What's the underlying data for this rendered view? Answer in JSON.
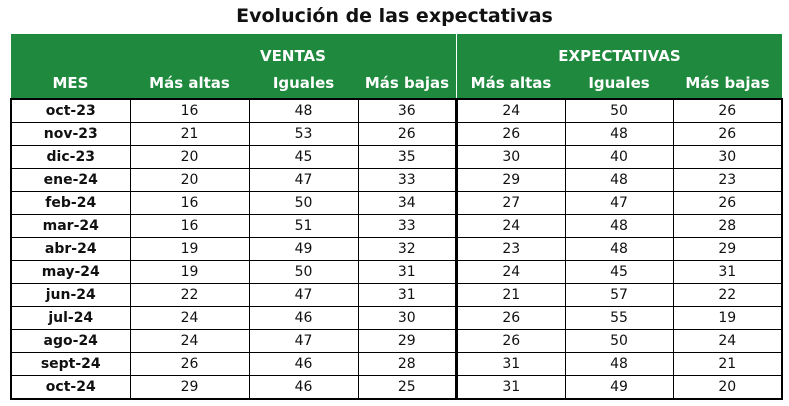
{
  "title": "Evolución de las expectativas",
  "ventas": {
    "group_label": "VENTAS",
    "headers": [
      "MES",
      "Más altas",
      "Iguales",
      "Más bajas"
    ]
  },
  "expectativas": {
    "group_label": "EXPECTATIVAS",
    "headers": [
      "Más altas",
      "Iguales",
      "Más bajas"
    ]
  },
  "rows": [
    {
      "mes": "oct-23",
      "v_altas": "16",
      "v_iguales": "48",
      "v_bajas": "36",
      "e_altas": "24",
      "e_iguales": "50",
      "e_bajas": "26"
    },
    {
      "mes": "nov-23",
      "v_altas": "21",
      "v_iguales": "53",
      "v_bajas": "26",
      "e_altas": "26",
      "e_iguales": "48",
      "e_bajas": "26"
    },
    {
      "mes": "dic-23",
      "v_altas": "20",
      "v_iguales": "45",
      "v_bajas": "35",
      "e_altas": "30",
      "e_iguales": "40",
      "e_bajas": "30"
    },
    {
      "mes": "ene-24",
      "v_altas": "20",
      "v_iguales": "47",
      "v_bajas": "33",
      "e_altas": "29",
      "e_iguales": "48",
      "e_bajas": "23"
    },
    {
      "mes": "feb-24",
      "v_altas": "16",
      "v_iguales": "50",
      "v_bajas": "34",
      "e_altas": "27",
      "e_iguales": "47",
      "e_bajas": "26"
    },
    {
      "mes": "mar-24",
      "v_altas": "16",
      "v_iguales": "51",
      "v_bajas": "33",
      "e_altas": "24",
      "e_iguales": "48",
      "e_bajas": "28"
    },
    {
      "mes": "abr-24",
      "v_altas": "19",
      "v_iguales": "49",
      "v_bajas": "32",
      "e_altas": "23",
      "e_iguales": "48",
      "e_bajas": "29"
    },
    {
      "mes": "may-24",
      "v_altas": "19",
      "v_iguales": "50",
      "v_bajas": "31",
      "e_altas": "24",
      "e_iguales": "45",
      "e_bajas": "31"
    },
    {
      "mes": "jun-24",
      "v_altas": "22",
      "v_iguales": "47",
      "v_bajas": "31",
      "e_altas": "21",
      "e_iguales": "57",
      "e_bajas": "22"
    },
    {
      "mes": "jul-24",
      "v_altas": "24",
      "v_iguales": "46",
      "v_bajas": "30",
      "e_altas": "26",
      "e_iguales": "55",
      "e_bajas": "19"
    },
    {
      "mes": "ago-24",
      "v_altas": "24",
      "v_iguales": "47",
      "v_bajas": "29",
      "e_altas": "26",
      "e_iguales": "50",
      "e_bajas": "24"
    },
    {
      "mes": "sept-24",
      "v_altas": "26",
      "v_iguales": "46",
      "v_bajas": "28",
      "e_altas": "31",
      "e_iguales": "48",
      "e_bajas": "21"
    },
    {
      "mes": "oct-24",
      "v_altas": "29",
      "v_iguales": "46",
      "v_bajas": "25",
      "e_altas": "31",
      "e_iguales": "49",
      "e_bajas": "20"
    }
  ]
}
